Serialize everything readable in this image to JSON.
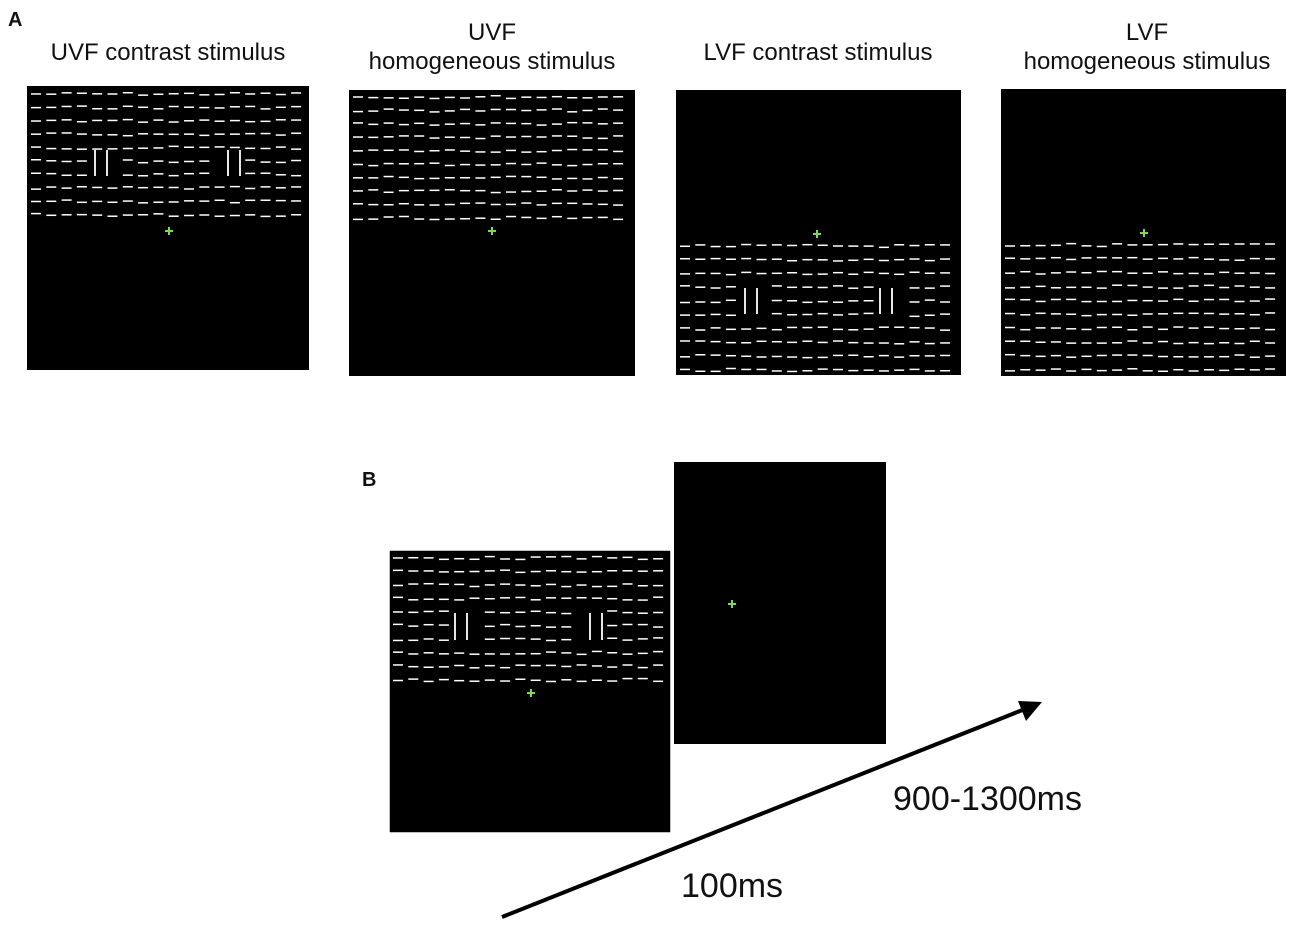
{
  "panel_a": {
    "label": "A",
    "stimuli": [
      {
        "title_lines": [
          "UVF contrast stimulus"
        ]
      },
      {
        "title_lines": [
          "UVF",
          "homogeneous stimulus"
        ]
      },
      {
        "title_lines": [
          "LVF contrast stimulus"
        ]
      },
      {
        "title_lines": [
          "LVF",
          "homogeneous stimulus"
        ]
      }
    ]
  },
  "panel_b": {
    "label": "B",
    "durations": [
      "100ms",
      "900-1300ms"
    ]
  }
}
